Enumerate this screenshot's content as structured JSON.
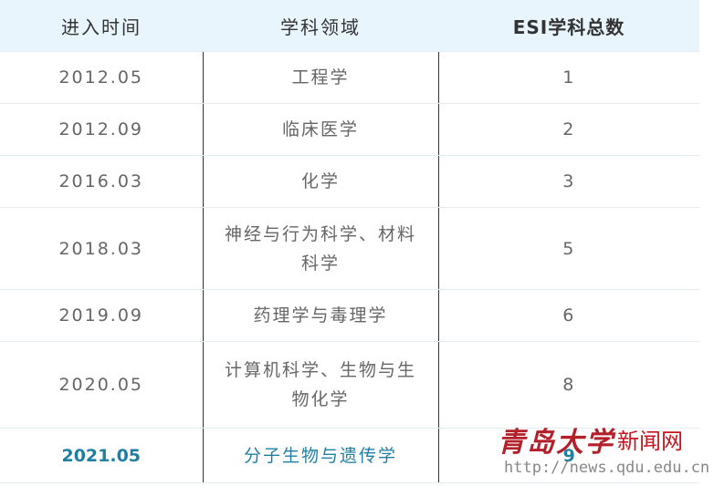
{
  "table": {
    "header": [
      "进入时间",
      "学科领域",
      "ESI学科总数"
    ],
    "rows": [
      [
        "2012.05",
        "工程学",
        "1"
      ],
      [
        "2012.09",
        "临床医学",
        "2"
      ],
      [
        "2016.03",
        "化学",
        "3"
      ],
      [
        "2018.03",
        "神经与行为科学、材料科学",
        "5"
      ],
      [
        "2019.09",
        "药理学与毒理学",
        "6"
      ],
      [
        "2020.05",
        "计算机科学、生物与生物化学",
        "8"
      ],
      [
        "2021.05",
        "分子生物与遗传学",
        "9"
      ]
    ]
  },
  "watermark": {
    "logo": "青岛大学",
    "site": "新闻网",
    "url": "http://news.qdu.edu.cn"
  }
}
